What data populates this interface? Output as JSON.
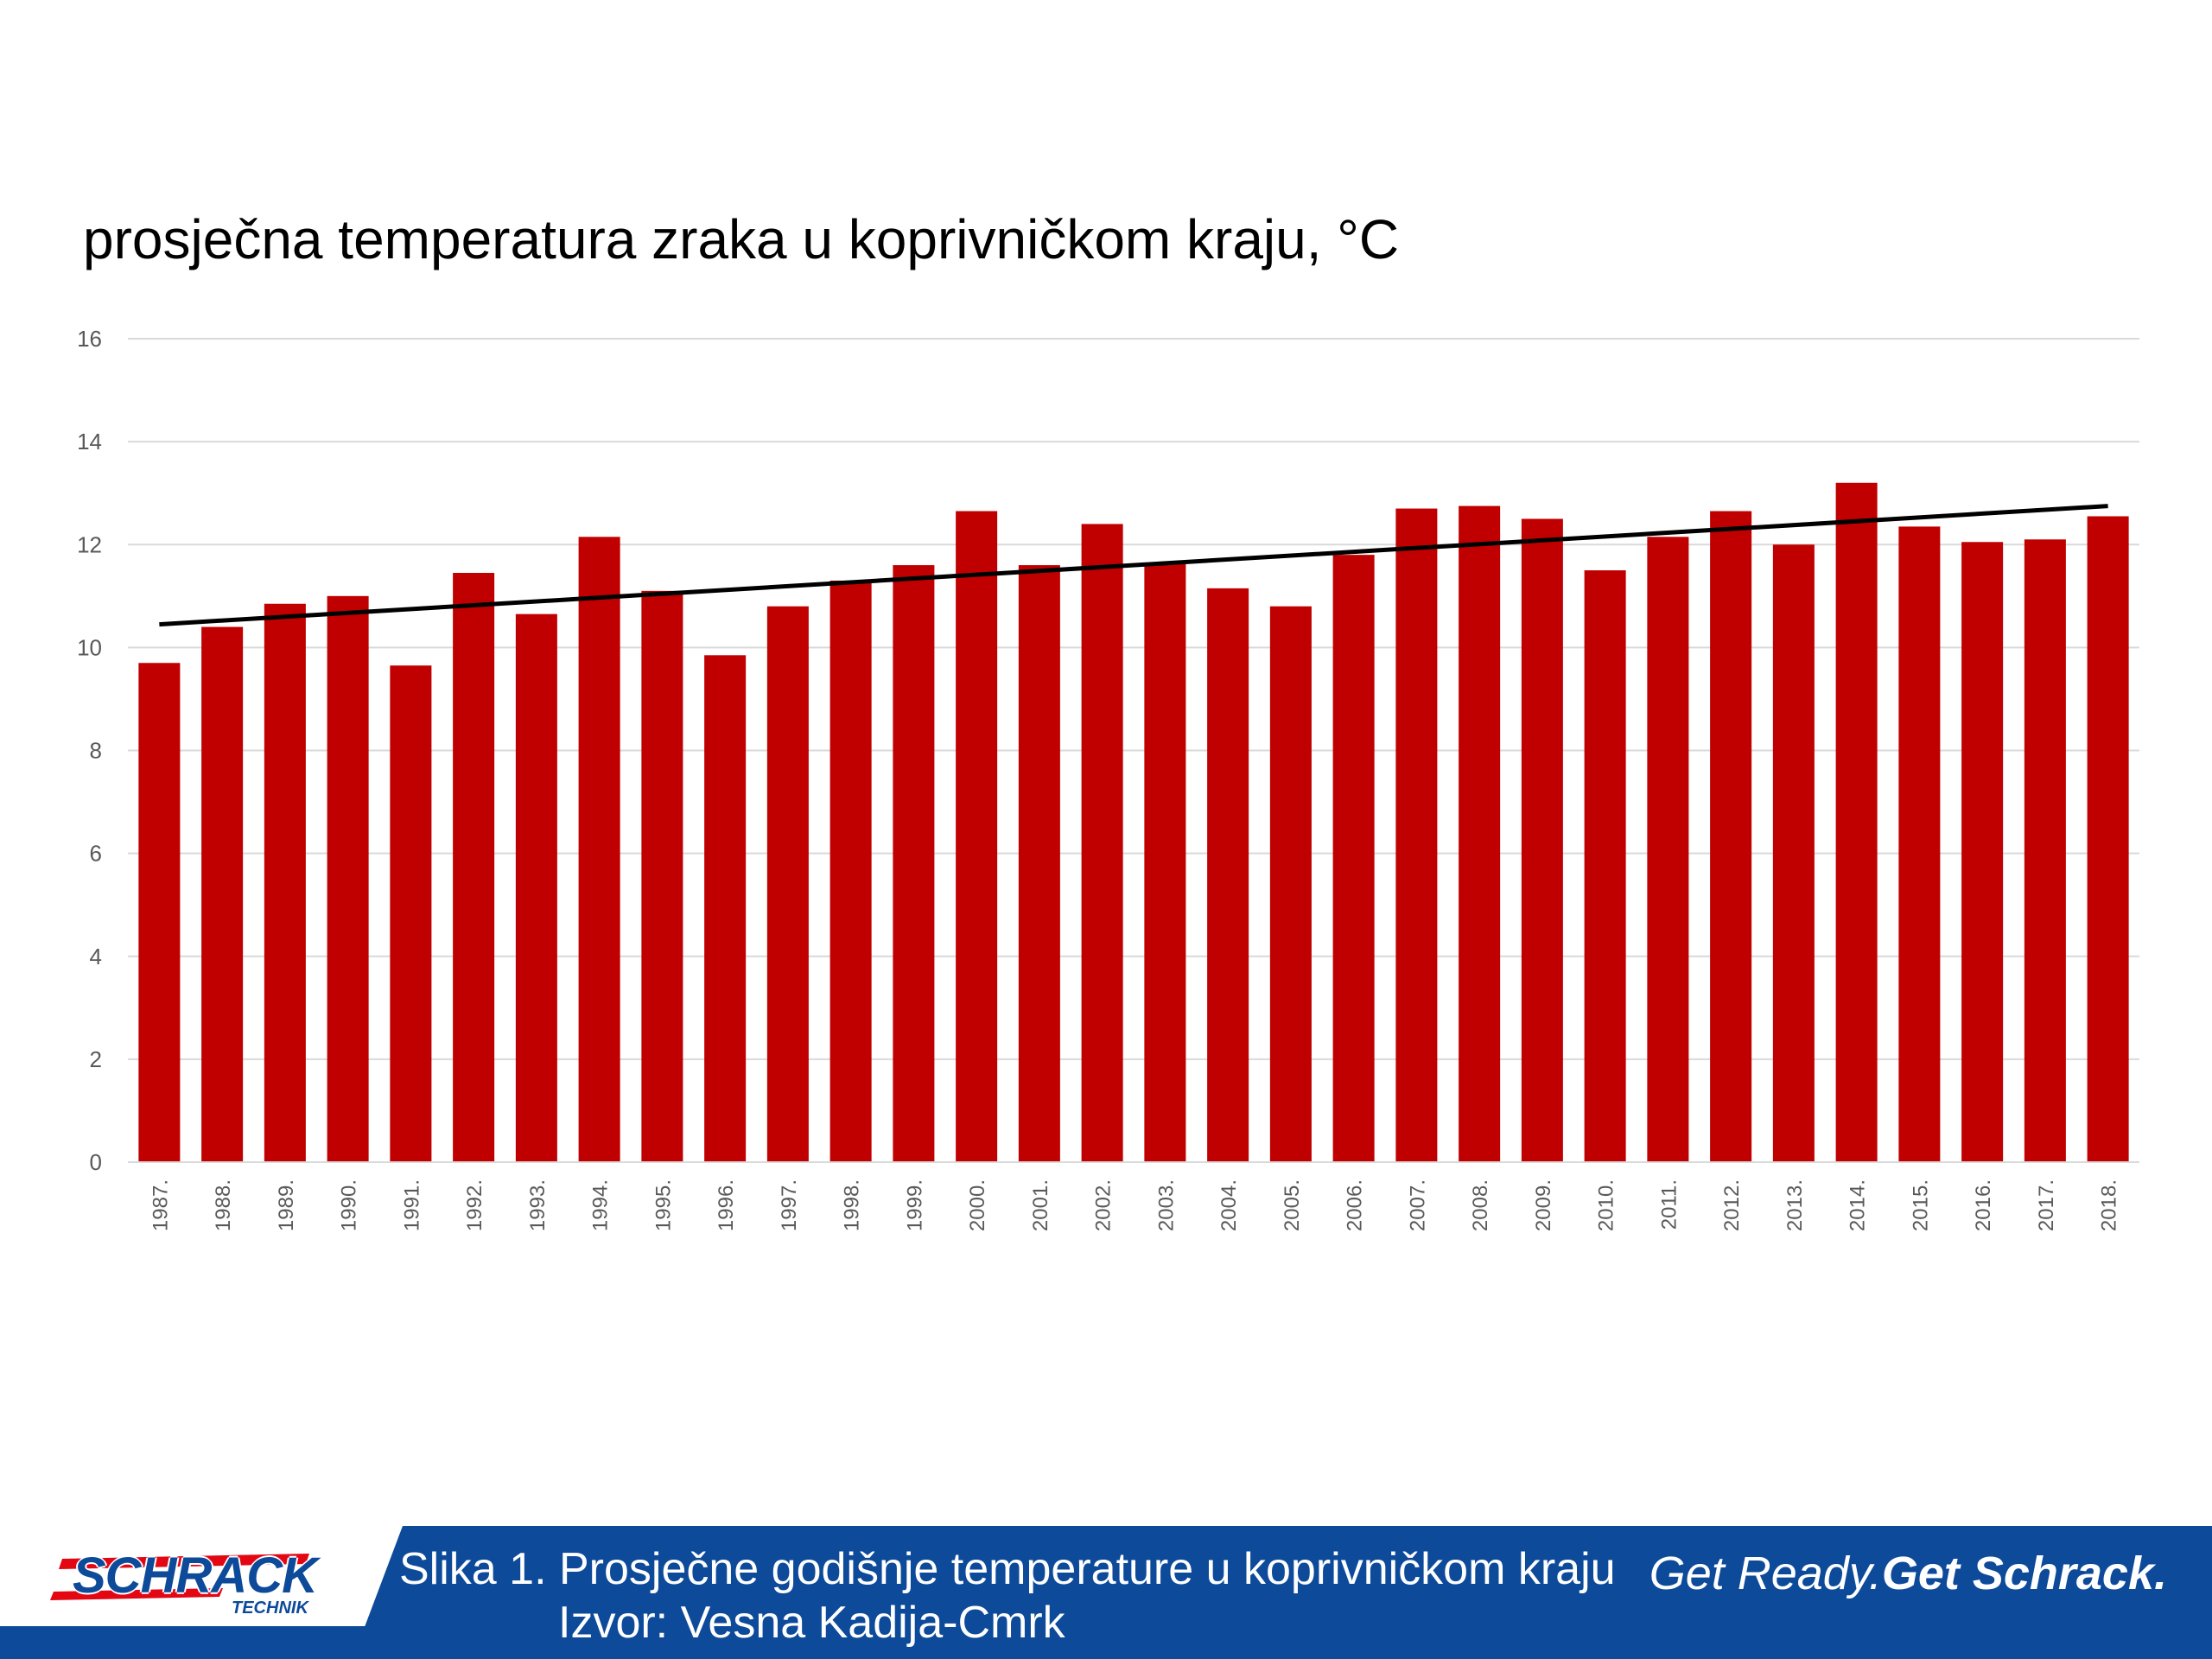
{
  "chart_data": {
    "type": "bar",
    "title": "prosječna temperatura zraka u koprivničkom kraju, °C",
    "xlabel": "",
    "ylabel": "",
    "ylim": [
      0,
      16
    ],
    "yticks": [
      "0",
      "2",
      "4",
      "6",
      "8",
      "10",
      "12",
      "14",
      "16"
    ],
    "grid": true,
    "bar_color": "#c00000",
    "categories": [
      "1987.",
      "1988.",
      "1989.",
      "1990.",
      "1991.",
      "1992.",
      "1993.",
      "1994.",
      "1995.",
      "1996.",
      "1997.",
      "1998.",
      "1999.",
      "2000.",
      "2001.",
      "2002.",
      "2003.",
      "2004.",
      "2005.",
      "2006.",
      "2007.",
      "2008.",
      "2009.",
      "2010.",
      "2011.",
      "2012.",
      "2013.",
      "2014.",
      "2015.",
      "2016.",
      "2017.",
      "2018."
    ],
    "values": [
      9.7,
      10.4,
      10.85,
      11.0,
      9.65,
      11.45,
      10.65,
      12.15,
      11.1,
      9.85,
      10.8,
      11.3,
      11.6,
      12.65,
      11.6,
      12.4,
      11.65,
      11.15,
      10.8,
      11.8,
      12.7,
      12.75,
      12.5,
      11.5,
      12.15,
      12.65,
      12.0,
      13.2,
      12.35,
      12.05,
      12.1,
      12.55
    ],
    "trendline": {
      "color": "#000000",
      "start": 10.45,
      "end": 12.75
    }
  },
  "footer": {
    "logo_text": "SCHRACK",
    "logo_subtext": "TECHNIK",
    "caption_line1": "Slika 1. Prosječne godišnje temperature u koprivničkom kraju",
    "caption_line2": "Izvor: Vesna Kadija-Cmrk",
    "slogan_part1": "Get Ready.",
    "slogan_part2": "Get Schrack.",
    "bg_color": "#0d4a9a"
  }
}
